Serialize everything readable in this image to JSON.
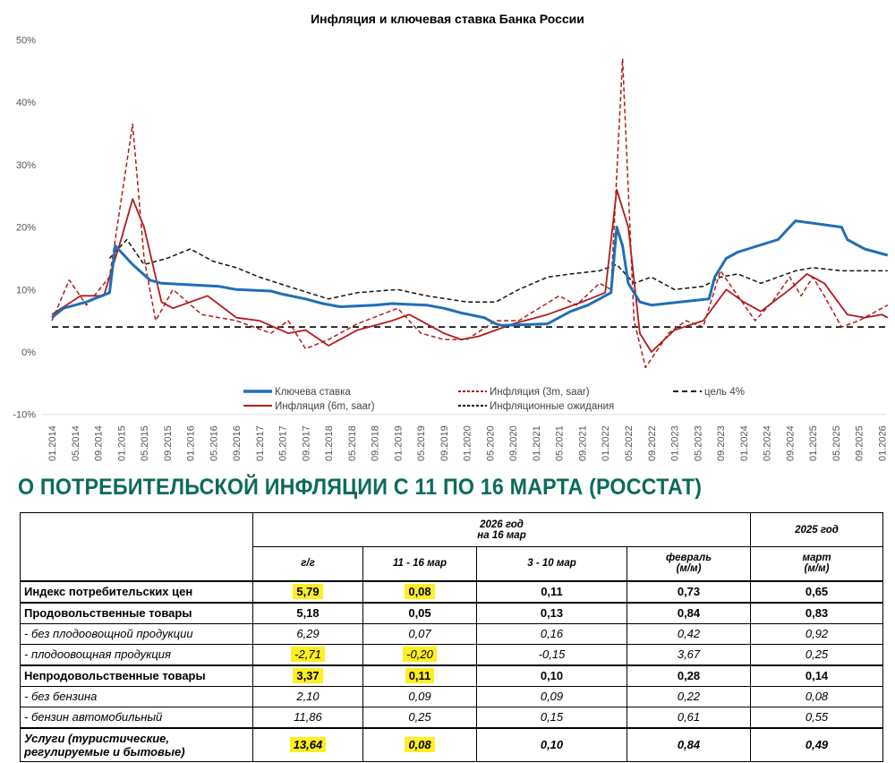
{
  "chart_data": {
    "type": "line",
    "title": "Инфляция и ключевая ставка Банка России",
    "ylim": [
      -10,
      50
    ],
    "yticks": [
      "-10%",
      "0%",
      "10%",
      "20%",
      "30%",
      "40%",
      "50%"
    ],
    "xlim": [
      "01.2014",
      "02.2026"
    ],
    "xticks": [
      "01.2014",
      "05.2014",
      "09.2014",
      "01.2015",
      "05.2015",
      "09.2015",
      "01.2016",
      "05.2016",
      "09.2016",
      "01.2017",
      "05.2017",
      "09.2017",
      "01.2018",
      "05.2018",
      "09.2018",
      "01.2019",
      "05.2019",
      "09.2019",
      "01.2020",
      "05.2020",
      "09.2020",
      "01.2021",
      "05.2021",
      "09.2021",
      "01.2022",
      "05.2022",
      "09.2022",
      "01.2023",
      "05.2023",
      "09.2023",
      "01.2024",
      "05.2024",
      "09.2024",
      "01.2025",
      "05.2025",
      "09.2025",
      "01.2026"
    ],
    "grid": false,
    "legend_placement": "bottom",
    "series": [
      {
        "name": "Ключева ставка",
        "color": "#1f6fb4",
        "style": "solid",
        "points": [
          [
            "01.2014",
            5.5
          ],
          [
            "03.2014",
            7
          ],
          [
            "07.2014",
            8
          ],
          [
            "11.2014",
            9.5
          ],
          [
            "12.2014",
            17
          ],
          [
            "02.2015",
            15
          ],
          [
            "03.2015",
            14
          ],
          [
            "06.2015",
            11.5
          ],
          [
            "08.2015",
            11
          ],
          [
            "06.2016",
            10.5
          ],
          [
            "09.2016",
            10
          ],
          [
            "03.2017",
            9.75
          ],
          [
            "05.2017",
            9.25
          ],
          [
            "09.2017",
            8.5
          ],
          [
            "12.2017",
            7.75
          ],
          [
            "03.2018",
            7.25
          ],
          [
            "09.2018",
            7.5
          ],
          [
            "12.2018",
            7.75
          ],
          [
            "06.2019",
            7.5
          ],
          [
            "09.2019",
            7
          ],
          [
            "12.2019",
            6.25
          ],
          [
            "04.2020",
            5.5
          ],
          [
            "06.2020",
            4.5
          ],
          [
            "07.2020",
            4.25
          ],
          [
            "03.2021",
            4.5
          ],
          [
            "04.2021",
            5
          ],
          [
            "07.2021",
            6.5
          ],
          [
            "10.2021",
            7.5
          ],
          [
            "12.2021",
            8.5
          ],
          [
            "02.2022",
            9.5
          ],
          [
            "03.2022",
            20
          ],
          [
            "04.2022",
            17
          ],
          [
            "05.2022",
            11
          ],
          [
            "06.2022",
            9.5
          ],
          [
            "07.2022",
            8
          ],
          [
            "09.2022",
            7.5
          ],
          [
            "07.2023",
            8.5
          ],
          [
            "08.2023",
            12
          ],
          [
            "10.2023",
            15
          ],
          [
            "12.2023",
            16
          ],
          [
            "07.2024",
            18
          ],
          [
            "10.2024",
            21
          ],
          [
            "06.2025",
            20
          ],
          [
            "07.2025",
            18
          ],
          [
            "09.2025",
            17
          ],
          [
            "10.2025",
            16.5
          ],
          [
            "02.2026",
            15.5
          ]
        ]
      },
      {
        "name": "Инфляция (6m, saar)",
        "color": "#b01c1c",
        "style": "solid",
        "points": [
          [
            "01.2014",
            6
          ],
          [
            "06.2014",
            9
          ],
          [
            "10.2014",
            9
          ],
          [
            "01.2015",
            18
          ],
          [
            "03.2015",
            24.5
          ],
          [
            "05.2015",
            20
          ],
          [
            "08.2015",
            8
          ],
          [
            "10.2015",
            7
          ],
          [
            "04.2016",
            9
          ],
          [
            "09.2016",
            5.5
          ],
          [
            "01.2017",
            5
          ],
          [
            "06.2017",
            3
          ],
          [
            "09.2017",
            3.5
          ],
          [
            "01.2018",
            1
          ],
          [
            "06.2018",
            3.5
          ],
          [
            "12.2018",
            5
          ],
          [
            "03.2019",
            6
          ],
          [
            "09.2019",
            3
          ],
          [
            "12.2019",
            2
          ],
          [
            "03.2020",
            2.5
          ],
          [
            "09.2020",
            4.5
          ],
          [
            "03.2021",
            6
          ],
          [
            "09.2021",
            8
          ],
          [
            "01.2022",
            9.5
          ],
          [
            "03.2022",
            26
          ],
          [
            "05.2022",
            20
          ],
          [
            "07.2022",
            3
          ],
          [
            "09.2022",
            0
          ],
          [
            "01.2023",
            3.5
          ],
          [
            "06.2023",
            5
          ],
          [
            "10.2023",
            10
          ],
          [
            "01.2024",
            8
          ],
          [
            "04.2024",
            6.5
          ],
          [
            "09.2024",
            10
          ],
          [
            "12.2024",
            12.5
          ],
          [
            "03.2025",
            11
          ],
          [
            "07.2025",
            6
          ],
          [
            "10.2025",
            5.5
          ],
          [
            "01.2026",
            6
          ],
          [
            "02.2026",
            5.5
          ]
        ]
      },
      {
        "name": "Инфляция (3m, saar)",
        "color": "#b01c1c",
        "style": "dashed",
        "points": [
          [
            "01.2014",
            5
          ],
          [
            "04.2014",
            11.5
          ],
          [
            "07.2014",
            7.5
          ],
          [
            "11.2014",
            12
          ],
          [
            "03.2015",
            36.5
          ],
          [
            "05.2015",
            15
          ],
          [
            "07.2015",
            5
          ],
          [
            "10.2015",
            10
          ],
          [
            "03.2016",
            6
          ],
          [
            "09.2016",
            5
          ],
          [
            "03.2017",
            3
          ],
          [
            "06.2017",
            5
          ],
          [
            "09.2017",
            0.5
          ],
          [
            "01.2018",
            2
          ],
          [
            "06.2018",
            4.5
          ],
          [
            "01.2019",
            7
          ],
          [
            "05.2019",
            3
          ],
          [
            "09.2019",
            2
          ],
          [
            "01.2020",
            2
          ],
          [
            "06.2020",
            5
          ],
          [
            "10.2020",
            5
          ],
          [
            "05.2021",
            9
          ],
          [
            "08.2021",
            7.5
          ],
          [
            "12.2021",
            11
          ],
          [
            "02.2022",
            10
          ],
          [
            "04.2022",
            47
          ],
          [
            "06.2022",
            5
          ],
          [
            "08.2022",
            -2.5
          ],
          [
            "12.2022",
            3
          ],
          [
            "03.2023",
            5
          ],
          [
            "06.2023",
            4
          ],
          [
            "09.2023",
            13
          ],
          [
            "12.2023",
            9
          ],
          [
            "03.2024",
            5
          ],
          [
            "06.2024",
            8
          ],
          [
            "09.2024",
            12
          ],
          [
            "11.2024",
            9
          ],
          [
            "01.2025",
            12
          ],
          [
            "03.2025",
            9
          ],
          [
            "06.2025",
            4
          ],
          [
            "09.2025",
            5
          ],
          [
            "01.2026",
            7
          ],
          [
            "02.2026",
            7.5
          ]
        ]
      },
      {
        "name": "Инфляционные ожидания",
        "color": "#111111",
        "style": "dashed",
        "points": [
          [
            "11.2014",
            15
          ],
          [
            "02.2015",
            18
          ],
          [
            "05.2015",
            14
          ],
          [
            "09.2015",
            15
          ],
          [
            "01.2016",
            16.5
          ],
          [
            "05.2016",
            14.5
          ],
          [
            "09.2016",
            13.5
          ],
          [
            "01.2017",
            12
          ],
          [
            "06.2017",
            10.5
          ],
          [
            "01.2018",
            8.5
          ],
          [
            "06.2018",
            9.5
          ],
          [
            "01.2019",
            10
          ],
          [
            "06.2019",
            9
          ],
          [
            "01.2020",
            8
          ],
          [
            "06.2020",
            8
          ],
          [
            "10.2020",
            10
          ],
          [
            "03.2021",
            12
          ],
          [
            "07.2021",
            12.5
          ],
          [
            "12.2021",
            13
          ],
          [
            "03.2022",
            14
          ],
          [
            "06.2022",
            11
          ],
          [
            "09.2022",
            12
          ],
          [
            "01.2023",
            10
          ],
          [
            "06.2023",
            10.5
          ],
          [
            "09.2023",
            12
          ],
          [
            "12.2023",
            12.5
          ],
          [
            "04.2024",
            11
          ],
          [
            "10.2024",
            13
          ],
          [
            "01.2025",
            13.5
          ],
          [
            "06.2025",
            13
          ],
          [
            "02.2026",
            13
          ]
        ]
      },
      {
        "name": "цель 4%",
        "color": "#111111",
        "style": "dashed-bold",
        "points": [
          [
            "01.2014",
            4
          ],
          [
            "02.2026",
            4
          ]
        ]
      }
    ]
  },
  "section_title": "О ПОТРЕБИТЕЛЬСКОЙ ИНФЛЯЦИИ С 11 ПО 16 МАРТА (РОССТАТ)",
  "table": {
    "group_2026": "2026 год",
    "group_2026_sub": "на 16 мар",
    "group_2025": "2025 год",
    "columns": [
      "г/г",
      "11 - 16 мар",
      "3 - 10 мар",
      "февраль (м/м)",
      "март (м/м)"
    ],
    "highlight_color": "#ffee22",
    "rows": [
      {
        "label": "Индекс потребительских цен",
        "style": "b",
        "values": [
          "5,79",
          "0,08",
          "0,11",
          "0,73",
          "0,65"
        ],
        "highlight": [
          true,
          true,
          false,
          false,
          false
        ]
      },
      {
        "label": "Продовольственные товары",
        "style": "b",
        "values": [
          "5,18",
          "0,05",
          "0,13",
          "0,84",
          "0,83"
        ],
        "highlight": [
          false,
          false,
          false,
          false,
          false
        ]
      },
      {
        "label": "- без плодоовощной продукции",
        "style": "i",
        "values": [
          "6,29",
          "0,07",
          "0,16",
          "0,42",
          "0,92"
        ],
        "highlight": [
          false,
          false,
          false,
          false,
          false
        ]
      },
      {
        "label": "- плодоовощная продукция",
        "style": "i",
        "values": [
          "-2,71",
          "-0,20",
          "-0,15",
          "3,67",
          "0,25"
        ],
        "highlight": [
          true,
          true,
          false,
          false,
          false
        ]
      },
      {
        "label": "Непродовольственные товары",
        "style": "b",
        "values": [
          "3,37",
          "0,11",
          "0,10",
          "0,28",
          "0,14"
        ],
        "highlight": [
          true,
          true,
          false,
          false,
          false
        ]
      },
      {
        "label": "- без бензина",
        "style": "i",
        "values": [
          "2,10",
          "0,09",
          "0,09",
          "0,22",
          "0,08"
        ],
        "highlight": [
          false,
          false,
          false,
          false,
          false
        ]
      },
      {
        "label": "- бензин автомобильный",
        "style": "i",
        "values": [
          "11,86",
          "0,25",
          "0,15",
          "0,61",
          "0,55"
        ],
        "highlight": [
          false,
          false,
          false,
          false,
          false
        ]
      },
      {
        "label": "Услуги (туристические, регулируемые и бытовые)",
        "style": "bi",
        "values": [
          "13,64",
          "0,08",
          "0,10",
          "0,84",
          "0,49"
        ],
        "highlight": [
          true,
          true,
          false,
          false,
          false
        ]
      }
    ]
  }
}
